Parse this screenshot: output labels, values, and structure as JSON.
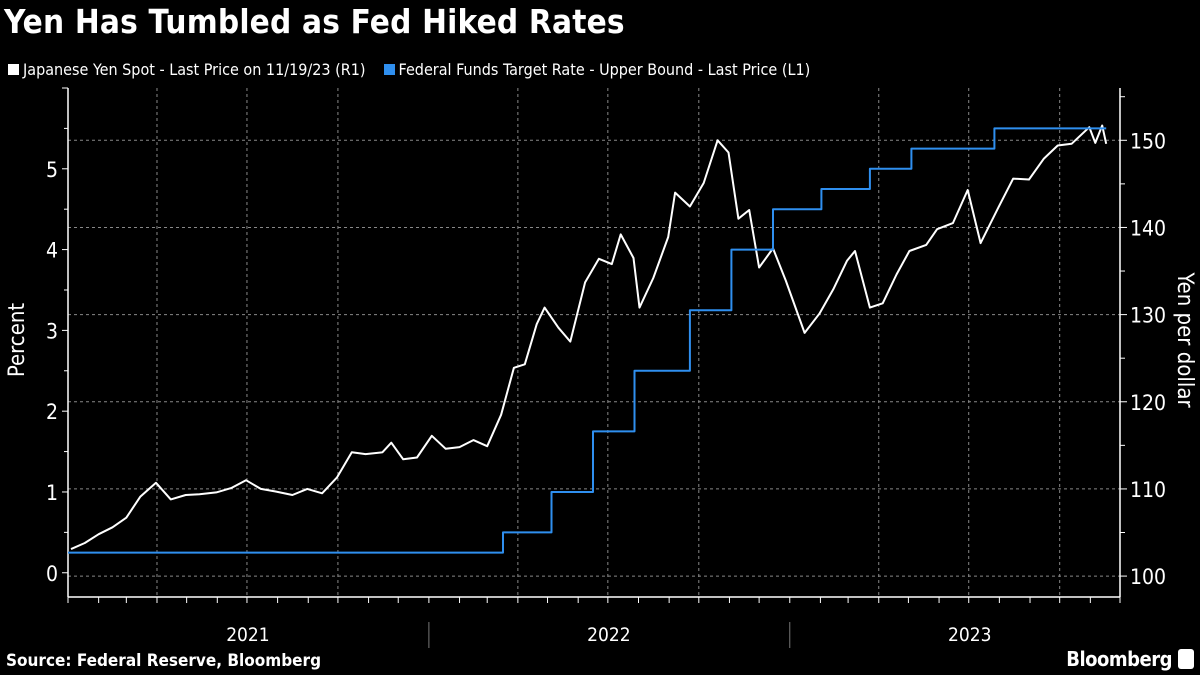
{
  "title": "Yen Has Tumbled as Fed Hiked Rates",
  "source": "Source: Federal Reserve, Bloomberg",
  "brand": "Bloomberg",
  "chart_data": {
    "type": "line",
    "title": "Yen Has Tumbled as Fed Hiked Rates",
    "grid": true,
    "legend_placement": "top-left",
    "x_range": [
      "2021-01-01",
      "2023-12-01"
    ],
    "x_tick_labels": [
      "2021",
      "2022",
      "2023"
    ],
    "left_axis": {
      "label": "Percent",
      "range": [
        -0.3,
        6
      ],
      "ticks": [
        0,
        1,
        2,
        3,
        4,
        5
      ]
    },
    "right_axis": {
      "label": "Yen per dollar",
      "range": [
        97.6,
        156
      ],
      "ticks": [
        100,
        110,
        120,
        130,
        140,
        150
      ]
    },
    "series": [
      {
        "name": "Japanese Yen Spot - Last Price on 11/19/23 (R1)",
        "axis": "right",
        "color": "#ffffff",
        "type": "line",
        "points": [
          [
            "2021-01-04",
            103.1
          ],
          [
            "2021-01-18",
            103.8
          ],
          [
            "2021-02-01",
            104.8
          ],
          [
            "2021-02-15",
            105.6
          ],
          [
            "2021-03-01",
            106.7
          ],
          [
            "2021-03-15",
            109.1
          ],
          [
            "2021-03-31",
            110.7
          ],
          [
            "2021-04-15",
            108.8
          ],
          [
            "2021-04-30",
            109.3
          ],
          [
            "2021-05-14",
            109.4
          ],
          [
            "2021-05-31",
            109.6
          ],
          [
            "2021-06-15",
            110.1
          ],
          [
            "2021-06-30",
            111.0
          ],
          [
            "2021-07-15",
            110.0
          ],
          [
            "2021-07-30",
            109.7
          ],
          [
            "2021-08-16",
            109.3
          ],
          [
            "2021-08-31",
            110.0
          ],
          [
            "2021-09-15",
            109.5
          ],
          [
            "2021-09-30",
            111.3
          ],
          [
            "2021-10-15",
            114.2
          ],
          [
            "2021-10-29",
            114.0
          ],
          [
            "2021-11-15",
            114.2
          ],
          [
            "2021-11-24",
            115.3
          ],
          [
            "2021-12-06",
            113.4
          ],
          [
            "2021-12-20",
            113.6
          ],
          [
            "2022-01-04",
            116.1
          ],
          [
            "2022-01-18",
            114.6
          ],
          [
            "2022-02-01",
            114.8
          ],
          [
            "2022-02-15",
            115.6
          ],
          [
            "2022-03-01",
            114.9
          ],
          [
            "2022-03-15",
            118.5
          ],
          [
            "2022-03-28",
            123.9
          ],
          [
            "2022-04-08",
            124.3
          ],
          [
            "2022-04-20",
            128.9
          ],
          [
            "2022-04-28",
            130.8
          ],
          [
            "2022-05-12",
            128.5
          ],
          [
            "2022-05-24",
            126.9
          ],
          [
            "2022-06-08",
            133.7
          ],
          [
            "2022-06-22",
            136.4
          ],
          [
            "2022-07-05",
            135.8
          ],
          [
            "2022-07-14",
            139.2
          ],
          [
            "2022-07-27",
            136.5
          ],
          [
            "2022-08-02",
            130.8
          ],
          [
            "2022-08-16",
            134.2
          ],
          [
            "2022-08-31",
            138.9
          ],
          [
            "2022-09-07",
            144.0
          ],
          [
            "2022-09-22",
            142.4
          ],
          [
            "2022-10-06",
            145.1
          ],
          [
            "2022-10-20",
            150.0
          ],
          [
            "2022-10-31",
            148.6
          ],
          [
            "2022-11-10",
            141.0
          ],
          [
            "2022-11-21",
            142.0
          ],
          [
            "2022-12-01",
            135.4
          ],
          [
            "2022-12-15",
            137.6
          ],
          [
            "2022-12-28",
            133.9
          ],
          [
            "2023-01-16",
            127.9
          ],
          [
            "2023-01-31",
            130.1
          ],
          [
            "2023-02-14",
            132.9
          ],
          [
            "2023-02-28",
            136.2
          ],
          [
            "2023-03-08",
            137.3
          ],
          [
            "2023-03-23",
            130.8
          ],
          [
            "2023-04-05",
            131.3
          ],
          [
            "2023-04-19",
            134.6
          ],
          [
            "2023-05-02",
            137.3
          ],
          [
            "2023-05-19",
            138.0
          ],
          [
            "2023-05-30",
            139.8
          ],
          [
            "2023-06-15",
            140.5
          ],
          [
            "2023-06-30",
            144.3
          ],
          [
            "2023-07-13",
            138.2
          ],
          [
            "2023-07-31",
            142.3
          ],
          [
            "2023-08-15",
            145.6
          ],
          [
            "2023-08-31",
            145.5
          ],
          [
            "2023-09-15",
            147.9
          ],
          [
            "2023-09-29",
            149.4
          ],
          [
            "2023-10-13",
            149.6
          ],
          [
            "2023-10-31",
            151.5
          ],
          [
            "2023-11-06",
            149.7
          ],
          [
            "2023-11-13",
            151.7
          ],
          [
            "2023-11-17",
            149.6
          ]
        ]
      },
      {
        "name": "Federal Funds Target Rate - Upper Bound - Last Price (L1)",
        "axis": "left",
        "color": "#2f8fef",
        "type": "step",
        "points": [
          [
            "2021-01-01",
            0.25
          ],
          [
            "2022-03-17",
            0.5
          ],
          [
            "2022-05-05",
            1.0
          ],
          [
            "2022-06-16",
            1.75
          ],
          [
            "2022-07-28",
            2.5
          ],
          [
            "2022-09-22",
            3.25
          ],
          [
            "2022-11-03",
            4.0
          ],
          [
            "2022-12-15",
            4.5
          ],
          [
            "2023-02-02",
            4.75
          ],
          [
            "2023-03-23",
            5.0
          ],
          [
            "2023-05-04",
            5.25
          ],
          [
            "2023-07-27",
            5.5
          ],
          [
            "2023-11-17",
            5.5
          ]
        ]
      }
    ]
  }
}
